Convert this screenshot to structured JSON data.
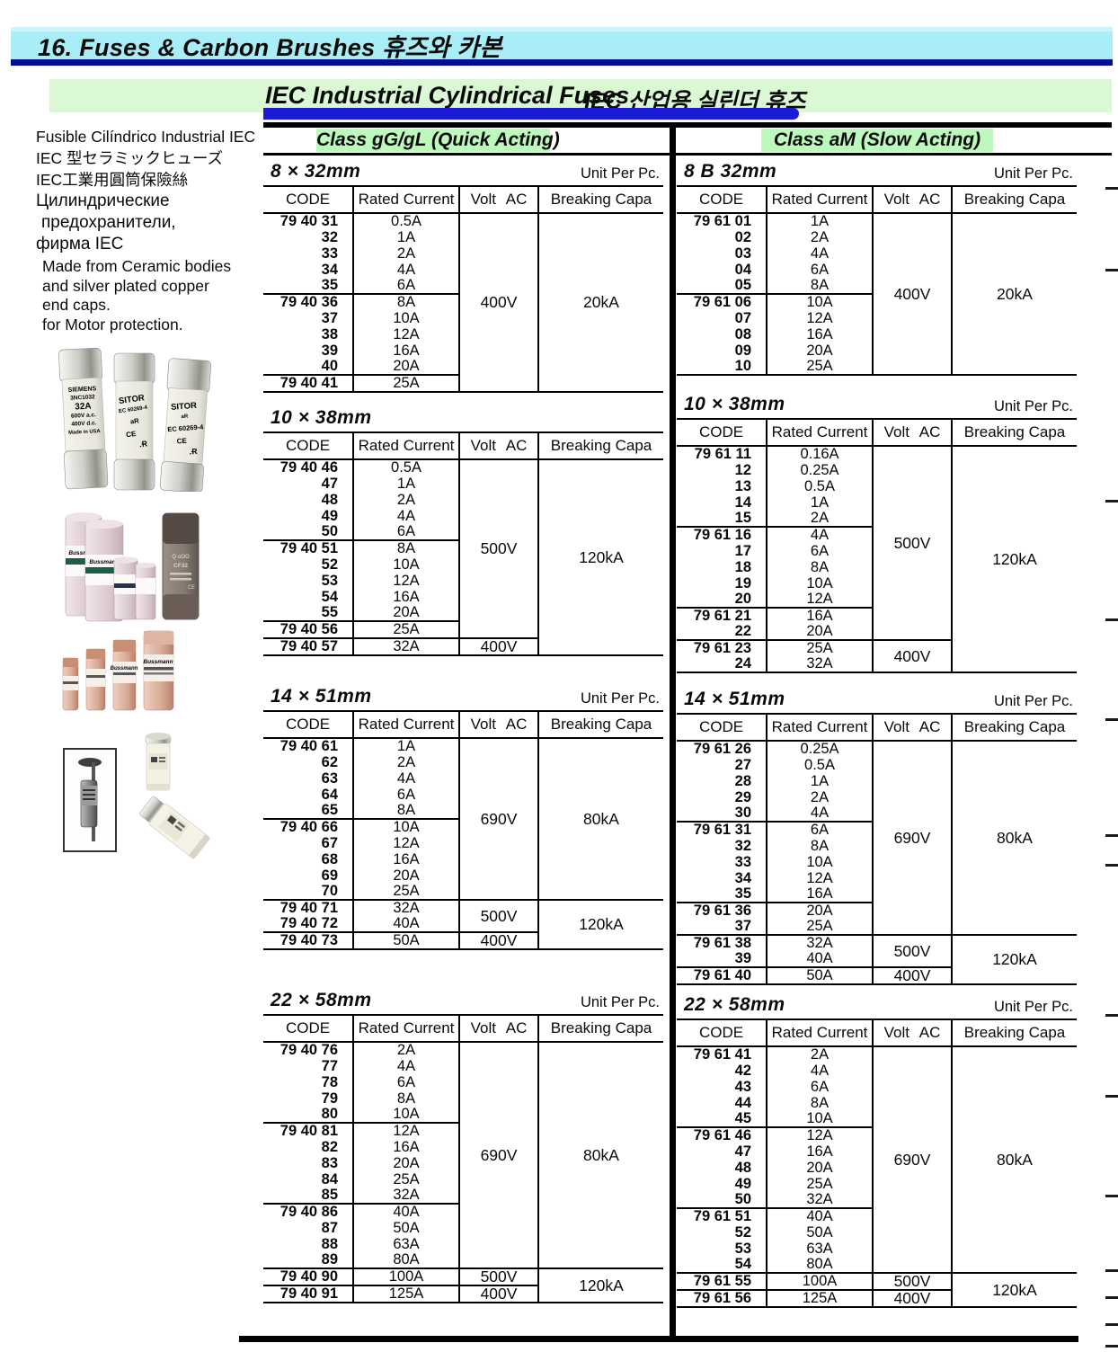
{
  "page": {
    "section_header": "16. Fuses & Carbon Brushes  휴즈와 카본",
    "title_en": "IEC Industrial Cylindrical Fuses",
    "title_ko": "IEC 산업용 실린더 휴즈"
  },
  "classes": {
    "left": "Class gG/gL (Quick Acting)",
    "right": "Class aM (Slow Acting)"
  },
  "sidebar": {
    "lines": [
      "Fusible Cilíndrico Industrial IEC",
      "IEC 型セラミックヒューズ",
      "IEC工業用圓筒保險絲",
      "Цилиндрические",
      "предохранители,",
      "фирма IEC"
    ],
    "description": [
      "Made from Ceramic bodies",
      "and silver plated copper",
      "end caps.",
      "for Motor protection."
    ]
  },
  "photos": {
    "siemens": {
      "brand": "SIEMENS",
      "model": "3NC1032",
      "rating": "32A",
      "volt1": "600V a.c.",
      "volt2": "400V d.c.",
      "origin": "Made in USA"
    },
    "sitor": {
      "brand": "SITOR",
      "model": "EC 60269-4",
      "mark": "aR"
    },
    "bussmann": {
      "brand": "Bussmann"
    },
    "dark_fuse": {
      "model": "CF32"
    }
  },
  "colors": {
    "header_bg": "#a9edf6",
    "header_underline": "#000d91",
    "title_band_bg": "#d9f8d3",
    "title_underline": "#1b1bd6",
    "class_highlight": "#bdf8bd"
  },
  "table_headers": [
    "CODE",
    "Rated Current",
    "Volt AC",
    "Breaking Capa"
  ],
  "tables": [
    {
      "id": "gg-8x32",
      "size": "8 × 32mm",
      "unit": "Unit Per Pc.",
      "rows": [
        [
          "79 40 31",
          "0.5A",
          1
        ],
        [
          "32",
          "1A",
          0
        ],
        [
          "33",
          "2A",
          0
        ],
        [
          "34",
          "4A",
          0
        ],
        [
          "35",
          "6A",
          0
        ],
        [
          "79 40 36",
          "8A",
          1
        ],
        [
          "37",
          "10A",
          0
        ],
        [
          "38",
          "12A",
          0
        ],
        [
          "39",
          "16A",
          0
        ],
        [
          "40",
          "20A",
          0
        ],
        [
          "79 40 41",
          "25A",
          1
        ]
      ],
      "volt": [
        [
          "400V",
          11
        ]
      ],
      "capa": [
        [
          "20kA",
          11
        ]
      ]
    },
    {
      "id": "gg-10x38",
      "size": "10 × 38mm",
      "unit": null,
      "rows": [
        [
          "79 40 46",
          "0.5A",
          1
        ],
        [
          "47",
          "1A",
          0
        ],
        [
          "48",
          "2A",
          0
        ],
        [
          "49",
          "4A",
          0
        ],
        [
          "50",
          "6A",
          0
        ],
        [
          "79 40 51",
          "8A",
          1
        ],
        [
          "52",
          "10A",
          0
        ],
        [
          "53",
          "12A",
          0
        ],
        [
          "54",
          "16A",
          0
        ],
        [
          "55",
          "20A",
          0
        ],
        [
          "79 40 56",
          "25A",
          1
        ],
        [
          "79 40 57",
          "32A",
          1
        ]
      ],
      "volt": [
        [
          "500V",
          11
        ],
        [
          "400V",
          1
        ]
      ],
      "capa": [
        [
          "120kA",
          12
        ]
      ]
    },
    {
      "id": "gg-14x51",
      "size": "14 × 51mm",
      "unit": "Unit Per Pc.",
      "rows": [
        [
          "79 40 61",
          "1A",
          1
        ],
        [
          "62",
          "2A",
          0
        ],
        [
          "63",
          "4A",
          0
        ],
        [
          "64",
          "6A",
          0
        ],
        [
          "65",
          "8A",
          0
        ],
        [
          "79 40 66",
          "10A",
          1
        ],
        [
          "67",
          "12A",
          0
        ],
        [
          "68",
          "16A",
          0
        ],
        [
          "69",
          "20A",
          0
        ],
        [
          "70",
          "25A",
          0
        ],
        [
          "79 40 71",
          "32A",
          1
        ],
        [
          "79 40 72",
          "40A",
          0
        ],
        [
          "79 40 73",
          "50A",
          1
        ]
      ],
      "volt": [
        [
          "690V",
          10
        ],
        [
          "500V",
          2
        ],
        [
          "400V",
          1
        ]
      ],
      "capa": [
        [
          "80kA",
          10
        ],
        [
          "120kA",
          3
        ]
      ]
    },
    {
      "id": "gg-22x58",
      "size": "22 × 58mm",
      "unit": "Unit Per Pc.",
      "rows": [
        [
          "79 40 76",
          "2A",
          1
        ],
        [
          "77",
          "4A",
          0
        ],
        [
          "78",
          "6A",
          0
        ],
        [
          "79",
          "8A",
          0
        ],
        [
          "80",
          "10A",
          0
        ],
        [
          "79 40 81",
          "12A",
          1
        ],
        [
          "82",
          "16A",
          0
        ],
        [
          "83",
          "20A",
          0
        ],
        [
          "84",
          "25A",
          0
        ],
        [
          "85",
          "32A",
          0
        ],
        [
          "79 40 86",
          "40A",
          1
        ],
        [
          "87",
          "50A",
          0
        ],
        [
          "88",
          "63A",
          0
        ],
        [
          "89",
          "80A",
          0
        ],
        [
          "79 40 90",
          "100A",
          1
        ],
        [
          "79 40 91",
          "125A",
          1
        ]
      ],
      "volt": [
        [
          "690V",
          14
        ],
        [
          "500V",
          1
        ],
        [
          "400V",
          1
        ]
      ],
      "capa": [
        [
          "80kA",
          14
        ],
        [
          "120kA",
          2
        ]
      ]
    },
    {
      "id": "am-8x32",
      "size": "8 B 32mm",
      "unit": "Unit Per Pc.",
      "rows": [
        [
          "79 61 01",
          "1A",
          1
        ],
        [
          "02",
          "2A",
          0
        ],
        [
          "03",
          "4A",
          0
        ],
        [
          "04",
          "6A",
          0
        ],
        [
          "05",
          "8A",
          0
        ],
        [
          "79 61 06",
          "10A",
          1
        ],
        [
          "07",
          "12A",
          0
        ],
        [
          "08",
          "16A",
          0
        ],
        [
          "09",
          "20A",
          0
        ],
        [
          "10",
          "25A",
          0
        ]
      ],
      "volt": [
        [
          "400V",
          10
        ]
      ],
      "capa": [
        [
          "20kA",
          10
        ]
      ]
    },
    {
      "id": "am-10x38",
      "size": "10 × 38mm",
      "unit": "Unit Per Pc.",
      "rows": [
        [
          "79 61 11",
          "0.16A",
          1
        ],
        [
          "12",
          "0.25A",
          0
        ],
        [
          "13",
          "0.5A",
          0
        ],
        [
          "14",
          "1A",
          0
        ],
        [
          "15",
          "2A",
          0
        ],
        [
          "79 61 16",
          "4A",
          1
        ],
        [
          "17",
          "6A",
          0
        ],
        [
          "18",
          "8A",
          0
        ],
        [
          "19",
          "10A",
          0
        ],
        [
          "20",
          "12A",
          0
        ],
        [
          "79 61 21",
          "16A",
          1
        ],
        [
          "22",
          "20A",
          0
        ],
        [
          "79 61 23",
          "25A",
          1
        ],
        [
          "24",
          "32A",
          0
        ]
      ],
      "volt": [
        [
          "500V",
          12
        ],
        [
          "400V",
          2
        ]
      ],
      "capa": [
        [
          "120kA",
          14
        ]
      ]
    },
    {
      "id": "am-14x51",
      "size": "14 × 51mm",
      "unit": "Unit Per Pc.",
      "rows": [
        [
          "79 61 26",
          "0.25A",
          1
        ],
        [
          "27",
          "0.5A",
          0
        ],
        [
          "28",
          "1A",
          0
        ],
        [
          "29",
          "2A",
          0
        ],
        [
          "30",
          "4A",
          0
        ],
        [
          "79 61 31",
          "6A",
          1
        ],
        [
          "32",
          "8A",
          0
        ],
        [
          "33",
          "10A",
          0
        ],
        [
          "34",
          "12A",
          0
        ],
        [
          "35",
          "16A",
          0
        ],
        [
          "79 61 36",
          "20A",
          1
        ],
        [
          "37",
          "25A",
          0
        ],
        [
          "79 61 38",
          "32A",
          1
        ],
        [
          "39",
          "40A",
          0
        ],
        [
          "79 61 40",
          "50A",
          1
        ]
      ],
      "volt": [
        [
          "690V",
          12
        ],
        [
          "500V",
          2
        ],
        [
          "400V",
          1
        ]
      ],
      "capa": [
        [
          "80kA",
          12
        ],
        [
          "120kA",
          3
        ]
      ]
    },
    {
      "id": "am-22x58",
      "size": "22 × 58mm",
      "unit": "Unit Per Pc.",
      "rows": [
        [
          "79 61 41",
          "2A",
          1
        ],
        [
          "42",
          "4A",
          0
        ],
        [
          "43",
          "6A",
          0
        ],
        [
          "44",
          "8A",
          0
        ],
        [
          "45",
          "10A",
          0
        ],
        [
          "79 61 46",
          "12A",
          1
        ],
        [
          "47",
          "16A",
          0
        ],
        [
          "48",
          "20A",
          0
        ],
        [
          "49",
          "25A",
          0
        ],
        [
          "50",
          "32A",
          0
        ],
        [
          "79 61 51",
          "40A",
          1
        ],
        [
          "52",
          "50A",
          0
        ],
        [
          "53",
          "63A",
          0
        ],
        [
          "54",
          "80A",
          0
        ],
        [
          "79 61 55",
          "100A",
          1
        ],
        [
          "79 61 56",
          "125A",
          1
        ]
      ],
      "volt": [
        [
          "690V",
          14
        ],
        [
          "500V",
          1
        ],
        [
          "400V",
          1
        ]
      ],
      "capa": [
        [
          "80kA",
          14
        ],
        [
          "120kA",
          2
        ]
      ]
    }
  ]
}
